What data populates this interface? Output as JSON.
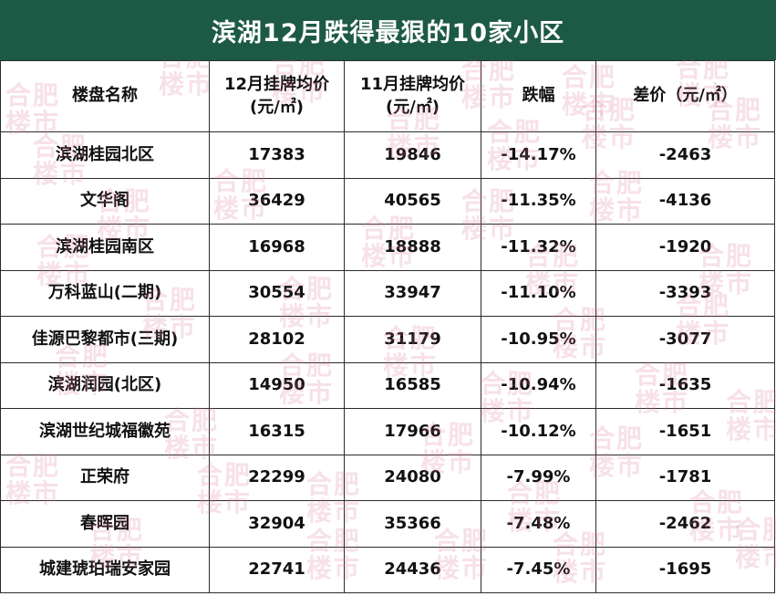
{
  "title": "滨湖12月跌得最狠的10家小区",
  "watermark": {
    "line1": "合肥",
    "line2": "楼市"
  },
  "table": {
    "headers": [
      {
        "line1": "楼盘名称",
        "line2": ""
      },
      {
        "line1": "12月挂牌均价",
        "line2": "(元/㎡)"
      },
      {
        "line1": "11月挂牌均价",
        "line2": "(元/㎡)"
      },
      {
        "line1": "跌幅",
        "line2": ""
      },
      {
        "line1": "差价（元/㎡）",
        "line2": ""
      }
    ],
    "rows": [
      [
        "滨湖桂园北区",
        "17383",
        "19846",
        "-14.17%",
        "-2463"
      ],
      [
        "文华阁",
        "36429",
        "40565",
        "-11.35%",
        "-4136"
      ],
      [
        "滨湖桂园南区",
        "16968",
        "18888",
        "-11.32%",
        "-1920"
      ],
      [
        "万科蓝山(二期)",
        "30554",
        "33947",
        "-11.10%",
        "-3393"
      ],
      [
        "佳源巴黎都市(三期)",
        "28102",
        "31179",
        "-10.95%",
        "-3077"
      ],
      [
        "滨湖润园(北区)",
        "14950",
        "16585",
        "-10.94%",
        "-1635"
      ],
      [
        "滨湖世纪城福徽苑",
        "16315",
        "17966",
        "-10.12%",
        "-1651"
      ],
      [
        "正荣府",
        "22299",
        "24080",
        "-7.99%",
        "-1781"
      ],
      [
        "春晖园",
        "32904",
        "35366",
        "-7.48%",
        "-2462"
      ],
      [
        "城建琥珀瑞安家园",
        "22741",
        "24436",
        "-7.45%",
        "-1695"
      ]
    ]
  },
  "colors": {
    "title_background": "#1d5a45",
    "title_text": "#ffffff",
    "grid_line": "#2b2b2b",
    "watermark": "#dc7896"
  }
}
